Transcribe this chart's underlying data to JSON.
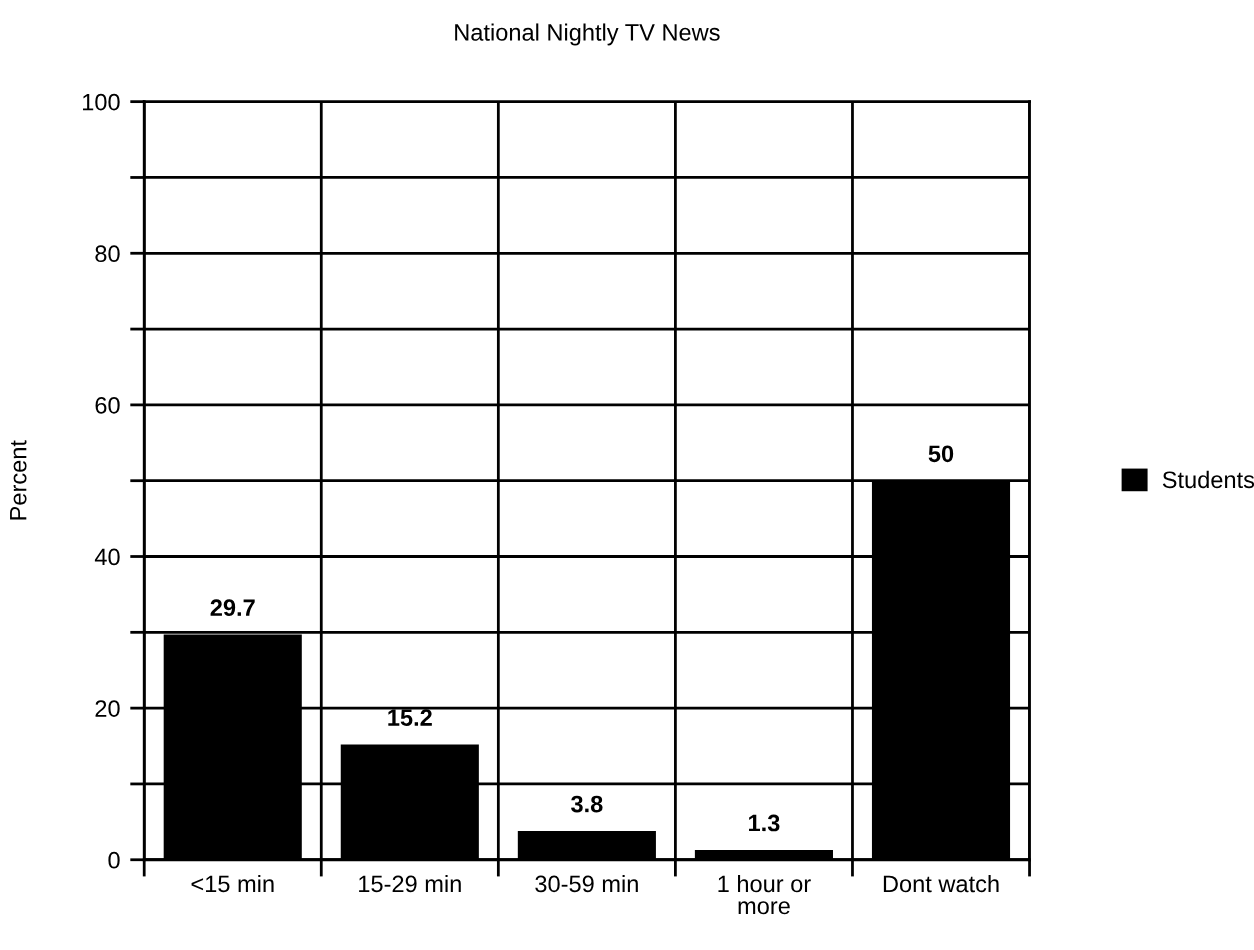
{
  "chart_data": {
    "type": "bar",
    "title": "National Nightly TV News",
    "ylabel": "Percent",
    "categories": [
      "<15 min",
      "15-29 min",
      "30-59 min",
      "1 hour or\nmore",
      "Dont watch"
    ],
    "series": [
      {
        "name": "Students",
        "color": "#000000",
        "values": [
          29.7,
          15.2,
          3.8,
          1.3,
          50
        ]
      }
    ],
    "ylim": [
      0,
      100
    ],
    "yticks": [
      0,
      {
        "value": 10,
        "label": null
      },
      20,
      {
        "value": 30,
        "label": null
      },
      40,
      {
        "value": 50,
        "label": null
      },
      60,
      {
        "value": 70,
        "label": null
      },
      80,
      {
        "value": 90,
        "label": null
      },
      100
    ],
    "grid": true,
    "legend": "right",
    "data_labels": true
  }
}
